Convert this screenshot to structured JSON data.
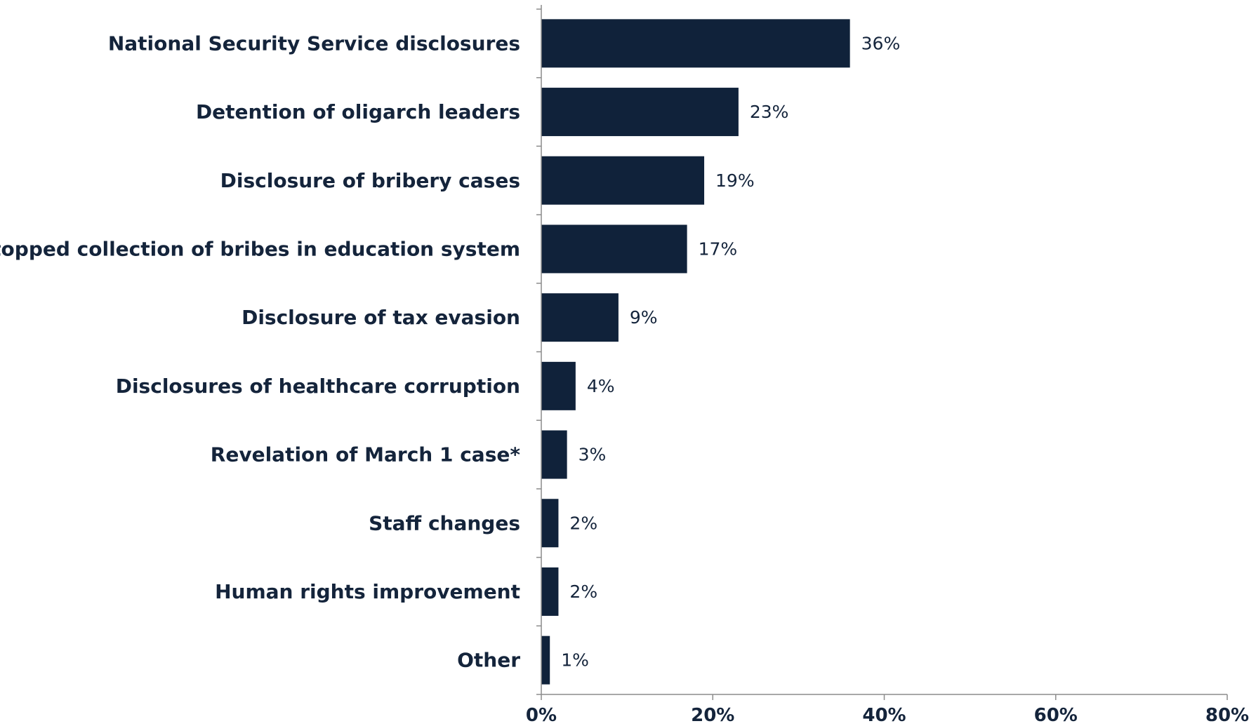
{
  "chart_data": {
    "type": "bar",
    "orientation": "horizontal",
    "categories": [
      "National Security Service disclosures",
      "Detention of oligarch leaders",
      "Disclosure of bribery cases",
      "Stopped collection of bribes in education system",
      "Disclosure of tax evasion",
      "Disclosures of healthcare corruption",
      "Revelation of March 1 case*",
      "Staff changes",
      "Human rights improvement",
      "Other"
    ],
    "values": [
      36,
      23,
      19,
      17,
      9,
      4,
      3,
      2,
      2,
      1
    ],
    "value_labels": [
      "36%",
      "23%",
      "19%",
      "17%",
      "9%",
      "4%",
      "3%",
      "2%",
      "2%",
      "1%"
    ],
    "xlim": [
      0,
      80
    ],
    "xticks": [
      0,
      20,
      40,
      60,
      80
    ],
    "xtick_labels": [
      "0%",
      "20%",
      "40%",
      "60%",
      "80%"
    ],
    "title": "",
    "xlabel": "",
    "ylabel": "",
    "grid": false,
    "legend": "none",
    "bar_color": "#10223a",
    "text_color": "#14243b",
    "axis_color": "#8c8c8c"
  }
}
